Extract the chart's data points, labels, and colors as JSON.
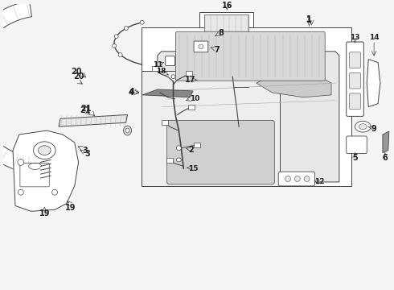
{
  "bg_color": "#f5f5f5",
  "line_color": "#444444",
  "light_gray": "#aaaaaa",
  "dark_gray": "#222222",
  "fill_white": "#ffffff",
  "fill_light": "#e8e8e8"
}
